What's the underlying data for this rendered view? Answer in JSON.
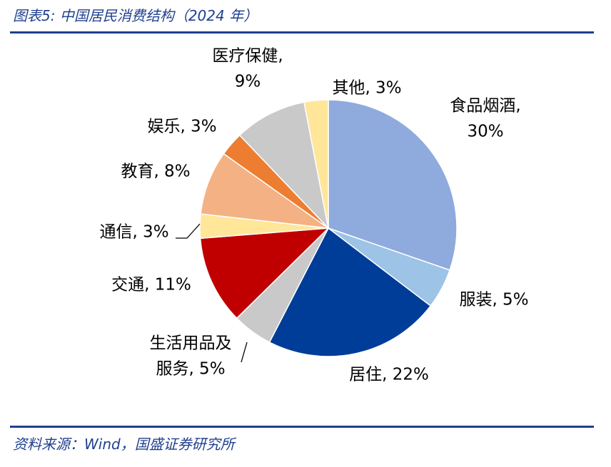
{
  "header": {
    "title": "图表5:  中国居民消费结构（2024 年）"
  },
  "footer": {
    "source": "资料来源：Wind，国盛证券研究所"
  },
  "chart_data": {
    "type": "pie",
    "title": "中国居民消费结构（2024 年）",
    "start": "12 o'clock",
    "direction": "clockwise",
    "slices": [
      {
        "name": "食品烟酒",
        "value": 30,
        "color": "#8FAADC",
        "label_lines": [
          "食品烟酒,",
          "30%"
        ]
      },
      {
        "name": "服装",
        "value": 5,
        "color": "#9DC3E6",
        "label_lines": [
          "服装, 5%"
        ]
      },
      {
        "name": "居住",
        "value": 22,
        "color": "#003D99",
        "label_lines": [
          "居住, 22%"
        ]
      },
      {
        "name": "生活用品及服务",
        "value": 5,
        "color": "#C9C9C9",
        "label_lines": [
          "生活用品及",
          "服务, 5%"
        ]
      },
      {
        "name": "交通",
        "value": 11,
        "color": "#C00000",
        "label_lines": [
          "交通, 11%"
        ]
      },
      {
        "name": "通信",
        "value": 3,
        "color": "#FFE699",
        "label_lines": [
          "通信, 3%"
        ]
      },
      {
        "name": "教育",
        "value": 8,
        "color": "#F4B183",
        "label_lines": [
          "教育, 8%"
        ]
      },
      {
        "name": "娱乐",
        "value": 3,
        "color": "#ED7D31",
        "label_lines": [
          "娱乐, 3%"
        ]
      },
      {
        "name": "医疗保健",
        "value": 9,
        "color": "#C9C9C9",
        "label_lines": [
          "医疗保健,",
          "9%"
        ]
      },
      {
        "name": "其他",
        "value": 3,
        "color": "#FFE699",
        "label_lines": [
          "其他, 3%"
        ]
      }
    ]
  }
}
